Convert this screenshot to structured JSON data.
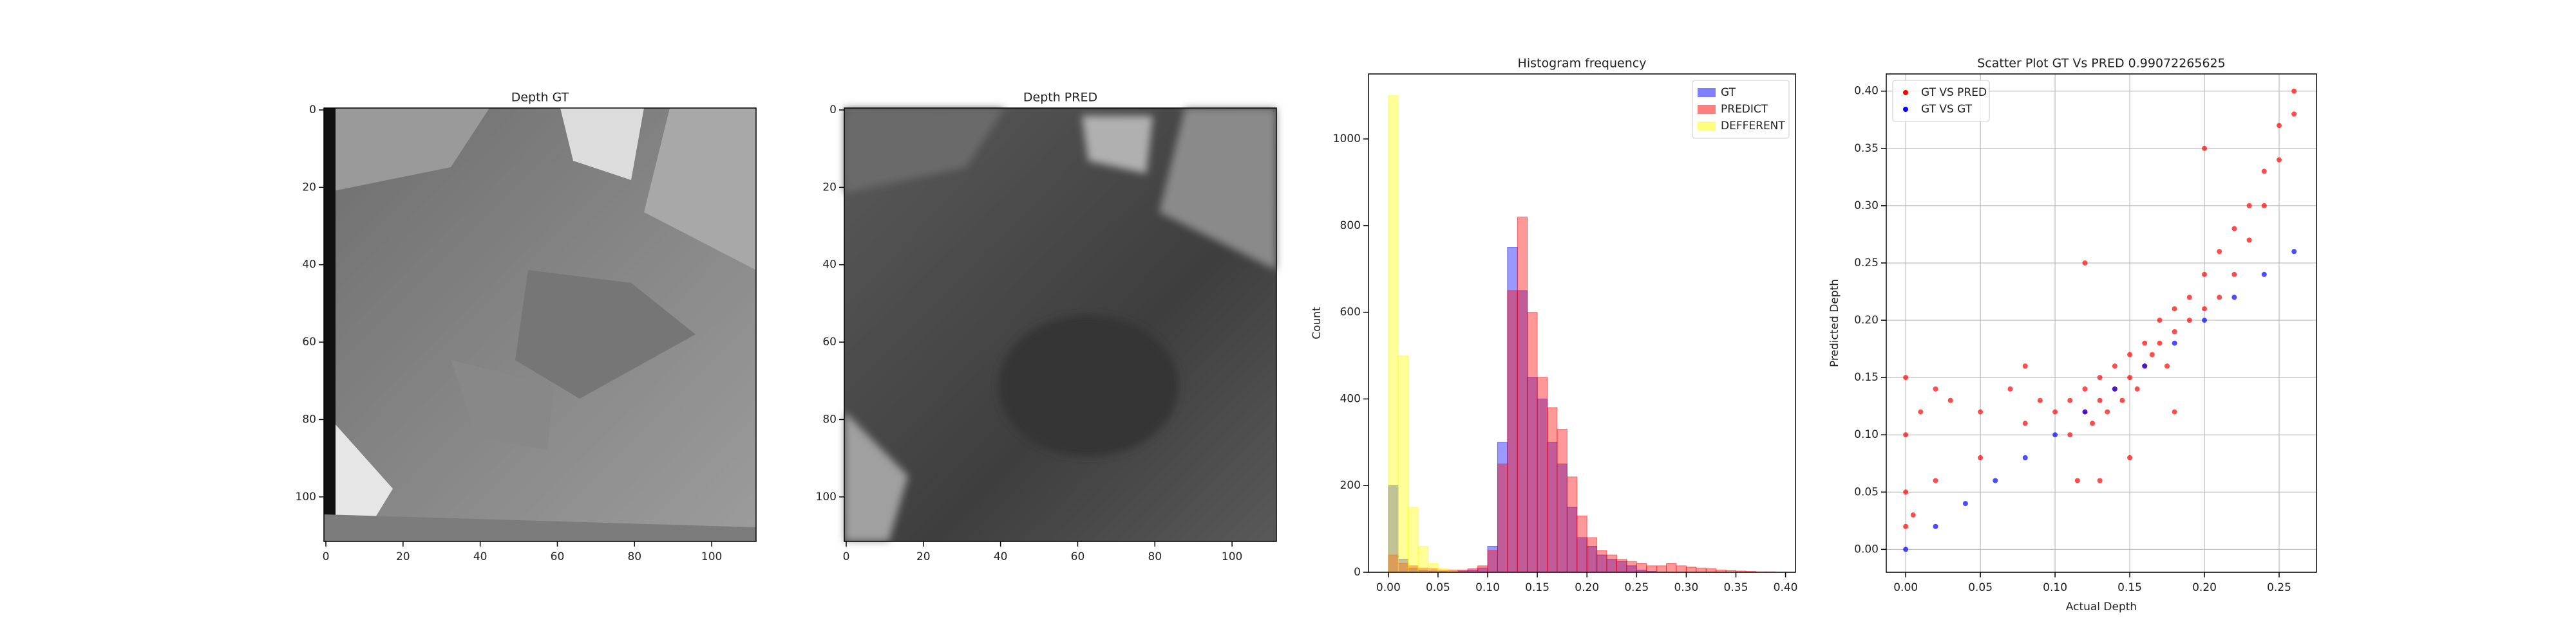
{
  "chart_data": [
    {
      "type": "image",
      "title": "Depth GT",
      "xlim": [
        -0.5,
        111.5
      ],
      "ylim": [
        111.5,
        -0.5
      ],
      "xticks": [
        0,
        20,
        40,
        60,
        80,
        100
      ],
      "yticks": [
        0,
        20,
        40,
        60,
        80,
        100
      ],
      "grid": false
    },
    {
      "type": "image",
      "title": "Depth PRED",
      "xlim": [
        -0.5,
        111.5
      ],
      "ylim": [
        111.5,
        -0.5
      ],
      "xticks": [
        0,
        20,
        40,
        60,
        80,
        100
      ],
      "yticks": [
        0,
        20,
        40,
        60,
        80,
        100
      ],
      "grid": false
    },
    {
      "type": "histogram",
      "title": "Histogram frequency",
      "y_label": "Count",
      "legend": "upper right",
      "grid": false,
      "bins": [
        0,
        0.01,
        0.02,
        0.03,
        0.04,
        0.05,
        0.06,
        0.07,
        0.08,
        0.09,
        0.1,
        0.11,
        0.12,
        0.13,
        0.14,
        0.15,
        0.16,
        0.17,
        0.18,
        0.19,
        0.2,
        0.21,
        0.22,
        0.23,
        0.24,
        0.25,
        0.26,
        0.27,
        0.28,
        0.29,
        0.3,
        0.31,
        0.32,
        0.33,
        0.34,
        0.35,
        0.36,
        0.37,
        0.38,
        0.39,
        0.4
      ],
      "series": [
        {
          "name": "GT",
          "color": "#0000ff",
          "values": [
            200,
            30,
            10,
            5,
            3,
            2,
            2,
            3,
            5,
            10,
            60,
            300,
            750,
            650,
            450,
            400,
            300,
            250,
            150,
            80,
            60,
            40,
            30,
            25,
            15,
            5,
            2,
            0,
            0,
            0,
            0,
            0,
            0,
            0,
            0,
            0,
            0,
            0,
            0,
            0
          ]
        },
        {
          "name": "PREDICT",
          "color": "#ff0000",
          "values": [
            40,
            20,
            15,
            10,
            8,
            5,
            5,
            5,
            8,
            15,
            50,
            250,
            650,
            820,
            600,
            450,
            380,
            330,
            220,
            130,
            80,
            50,
            40,
            30,
            25,
            20,
            15,
            15,
            20,
            15,
            12,
            10,
            8,
            5,
            4,
            3,
            2,
            1,
            1,
            0
          ]
        },
        {
          "name": "DEFFERENT",
          "color": "#ffff00",
          "values": [
            1100,
            500,
            150,
            60,
            20,
            8,
            3,
            1,
            0,
            0,
            0,
            0,
            0,
            0,
            0,
            0,
            0,
            0,
            0,
            0,
            0,
            0,
            0,
            0,
            0,
            0,
            0,
            0,
            0,
            0,
            0,
            0,
            0,
            0,
            0,
            0,
            0,
            0,
            0,
            0
          ]
        }
      ],
      "xlim": [
        -0.02,
        0.41
      ],
      "ylim": [
        0,
        1150
      ],
      "xticks": [
        {
          "value": 0,
          "label": "0.00"
        },
        {
          "value": 0.05,
          "label": "0.05"
        },
        {
          "value": 0.1,
          "label": "0.10"
        },
        {
          "value": 0.15,
          "label": "0.15"
        },
        {
          "value": 0.2,
          "label": "0.20"
        },
        {
          "value": 0.25,
          "label": "0.25"
        },
        {
          "value": 0.3,
          "label": "0.30"
        },
        {
          "value": 0.35,
          "label": "0.35"
        },
        {
          "value": 0.4,
          "label": "0.40"
        }
      ],
      "yticks": [
        0,
        200,
        400,
        600,
        800,
        1000
      ]
    },
    {
      "type": "scatter",
      "title": "Scatter Plot GT Vs PRED 0.99072265625",
      "x_label": "Actual Depth",
      "y_label": "Predicted Depth",
      "legend": "upper left",
      "grid": true,
      "series": [
        {
          "name": "GT VS PRED",
          "color": "#ff0000",
          "x": [
            0,
            0,
            0,
            0,
            0.005,
            0.01,
            0.02,
            0.03,
            0.05,
            0.07,
            0.08,
            0.09,
            0.1,
            0.11,
            0.11,
            0.115,
            0.12,
            0.12,
            0.125,
            0.13,
            0.13,
            0.135,
            0.14,
            0.14,
            0.145,
            0.15,
            0.15,
            0.155,
            0.16,
            0.16,
            0.165,
            0.17,
            0.17,
            0.175,
            0.18,
            0.18,
            0.19,
            0.19,
            0.2,
            0.2,
            0.21,
            0.21,
            0.22,
            0.22,
            0.23,
            0.23,
            0.24,
            0.24,
            0.25,
            0.25,
            0.26,
            0.26,
            0.13,
            0.12,
            0.2,
            0.18,
            0.15,
            0.05,
            0.02,
            0.08
          ],
          "y": [
            0.02,
            0.05,
            0.1,
            0.15,
            0.03,
            0.12,
            0.14,
            0.13,
            0.12,
            0.14,
            0.11,
            0.13,
            0.12,
            0.1,
            0.13,
            0.06,
            0.12,
            0.14,
            0.11,
            0.13,
            0.15,
            0.12,
            0.14,
            0.16,
            0.13,
            0.15,
            0.17,
            0.14,
            0.16,
            0.18,
            0.17,
            0.18,
            0.2,
            0.16,
            0.19,
            0.21,
            0.2,
            0.22,
            0.21,
            0.24,
            0.22,
            0.26,
            0.24,
            0.28,
            0.27,
            0.3,
            0.3,
            0.33,
            0.34,
            0.37,
            0.4,
            0.38,
            0.06,
            0.25,
            0.35,
            0.12,
            0.08,
            0.08,
            0.06,
            0.16
          ]
        },
        {
          "name": "GT VS GT",
          "color": "#0000ff",
          "x": [
            0,
            0.02,
            0.04,
            0.06,
            0.08,
            0.1,
            0.12,
            0.14,
            0.16,
            0.18,
            0.2,
            0.22,
            0.24,
            0.26
          ],
          "y": [
            0,
            0.02,
            0.04,
            0.06,
            0.08,
            0.1,
            0.12,
            0.14,
            0.16,
            0.18,
            0.2,
            0.22,
            0.24,
            0.26
          ]
        }
      ],
      "xlim": [
        -0.013,
        0.275
      ],
      "ylim": [
        -0.02,
        0.415
      ],
      "xticks": [
        {
          "value": 0,
          "label": "0.00"
        },
        {
          "value": 0.05,
          "label": "0.05"
        },
        {
          "value": 0.1,
          "label": "0.10"
        },
        {
          "value": 0.15,
          "label": "0.15"
        },
        {
          "value": 0.2,
          "label": "0.20"
        },
        {
          "value": 0.25,
          "label": "0.25"
        }
      ],
      "yticks": [
        {
          "value": 0,
          "label": "0.00"
        },
        {
          "value": 0.05,
          "label": "0.05"
        },
        {
          "value": 0.1,
          "label": "0.10"
        },
        {
          "value": 0.15,
          "label": "0.15"
        },
        {
          "value": 0.2,
          "label": "0.20"
        },
        {
          "value": 0.25,
          "label": "0.25"
        },
        {
          "value": 0.3,
          "label": "0.30"
        },
        {
          "value": 0.35,
          "label": "0.35"
        },
        {
          "value": 0.4,
          "label": "0.40"
        }
      ]
    }
  ]
}
